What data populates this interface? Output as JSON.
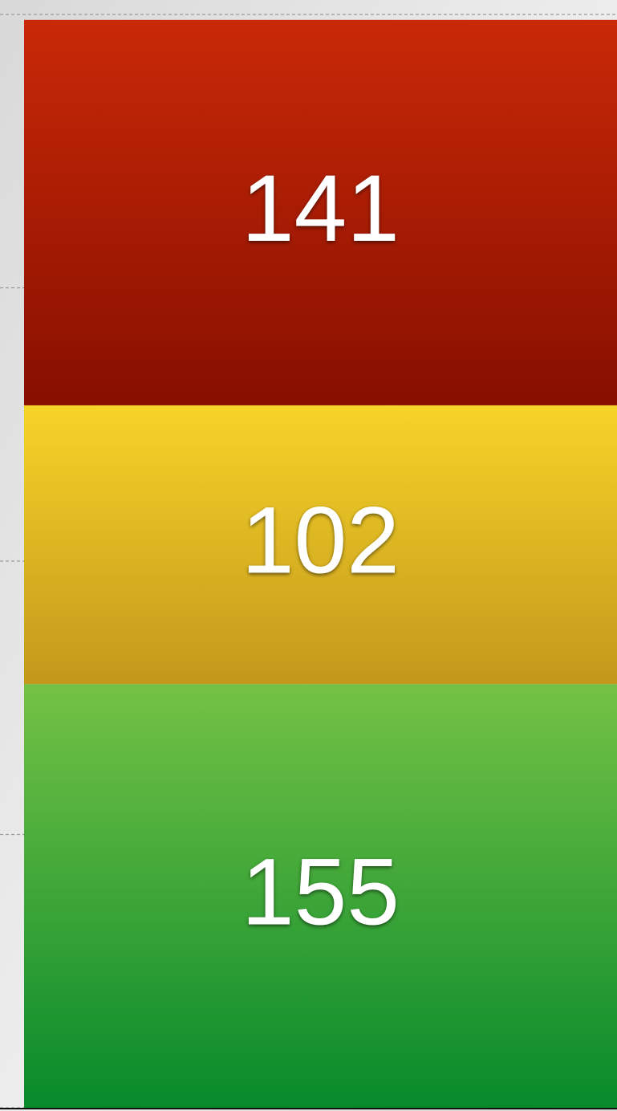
{
  "chart_data": {
    "type": "bar",
    "stacked": true,
    "values": [
      155,
      102,
      141
    ],
    "colors": [
      [
        "#74c245",
        "#078a2b"
      ],
      [
        "#f6d428",
        "#c3981c"
      ],
      [
        "#c92907",
        "#870f00"
      ]
    ],
    "ylim": [
      0,
      400
    ],
    "yticks": [
      0,
      100,
      200,
      300,
      400
    ],
    "grid": true
  }
}
